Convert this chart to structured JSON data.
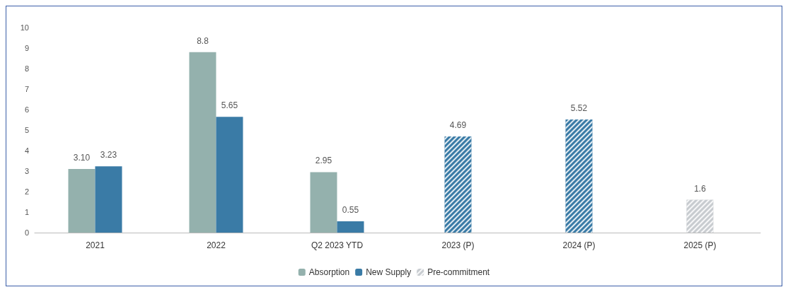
{
  "chart_data": {
    "type": "bar",
    "categories": [
      "2021",
      "2022",
      "Q2 2023 YTD",
      "2023 (P)",
      "2024 (P)",
      "2025 (P)"
    ],
    "series": [
      {
        "name": "Absorption",
        "color": "#94b1ad",
        "values": [
          3.1,
          8.8,
          2.95,
          null,
          null,
          null
        ],
        "value_labels": [
          "3.10",
          "8.8",
          "2.95",
          null,
          null,
          null
        ]
      },
      {
        "name": "New Supply",
        "color": "#3a7ba6",
        "values": [
          3.23,
          5.65,
          0.55,
          null,
          null,
          null
        ],
        "value_labels": [
          "3.23",
          "5.65",
          "0.55",
          null,
          null,
          null
        ]
      },
      {
        "name": "Pre-commitment",
        "color": "#c8ccd0",
        "colors": [
          null,
          null,
          null,
          "#3a7ba6",
          "#3a7ba6",
          "#c8ccd0"
        ],
        "values": [
          null,
          null,
          null,
          4.69,
          5.52,
          1.6
        ],
        "value_labels": [
          null,
          null,
          null,
          "4.69",
          "5.52",
          "1.6"
        ]
      }
    ],
    "ylim": [
      0,
      10
    ],
    "yticks": [
      0,
      1,
      2,
      3,
      4,
      5,
      6,
      7,
      8,
      9,
      10
    ],
    "grid": false,
    "legend": "bottom"
  }
}
